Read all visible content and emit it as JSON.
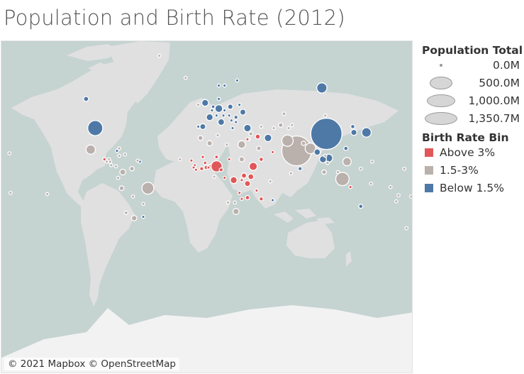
{
  "title": "Population and Birth Rate (2012)",
  "attribution": "© 2021 Mapbox © OpenStreetMap",
  "legend": {
    "size_title": "Population Total",
    "size_items": [
      {
        "label": "0.0M",
        "value": 0
      },
      {
        "label": "500.0M",
        "value": 500
      },
      {
        "label": "1,000.0M",
        "value": 1000
      },
      {
        "label": "1,350.7M",
        "value": 1350.7
      }
    ],
    "color_title": "Birth Rate Bin",
    "color_items": [
      {
        "label": "Above 3%",
        "color": "#e05759"
      },
      {
        "label": "1.5-3%",
        "color": "#bab0ac"
      },
      {
        "label": "Below 1.5%",
        "color": "#4e79a7"
      }
    ]
  },
  "chart_data": {
    "type": "scatter",
    "encoding": "circle size = population total, color = birth rate bin",
    "colors": {
      "Above 3%": "#e05759",
      "1.5-3%": "#bab0ac",
      "Below 1.5%": "#4e79a7"
    },
    "points": [
      {
        "lon": 104,
        "lat": 35,
        "pop": 1350.7,
        "bin": "Below 1.5%"
      },
      {
        "lon": 78,
        "lat": 22,
        "pop": 1236,
        "bin": "1.5-3%"
      },
      {
        "lon": -98,
        "lat": 39,
        "pop": 314,
        "bin": "Below 1.5%"
      },
      {
        "lon": 118,
        "lat": -2,
        "pop": 247,
        "bin": "1.5-3%"
      },
      {
        "lon": -52,
        "lat": -10,
        "pop": 199,
        "bin": "1.5-3%"
      },
      {
        "lon": 70,
        "lat": 30,
        "pop": 180,
        "bin": "1.5-3%"
      },
      {
        "lon": 8,
        "lat": 9,
        "pop": 169,
        "bin": "Above 3%"
      },
      {
        "lon": 90,
        "lat": 24,
        "pop": 155,
        "bin": "1.5-3%"
      },
      {
        "lon": 100,
        "lat": 61,
        "pop": 143,
        "bin": "Below 1.5%"
      },
      {
        "lon": 139,
        "lat": 36,
        "pop": 127,
        "bin": "Below 1.5%"
      },
      {
        "lon": -102,
        "lat": 23,
        "pop": 120,
        "bin": "1.5-3%"
      },
      {
        "lon": 122,
        "lat": 13,
        "pop": 97,
        "bin": "1.5-3%"
      },
      {
        "lon": 40,
        "lat": 9,
        "pop": 91,
        "bin": "Above 3%"
      },
      {
        "lon": 106,
        "lat": 16,
        "pop": 89,
        "bin": "Below 1.5%"
      },
      {
        "lon": 30,
        "lat": 27,
        "pop": 81,
        "bin": "1.5-3%"
      },
      {
        "lon": 10,
        "lat": 51,
        "pop": 80,
        "bin": "Below 1.5%"
      },
      {
        "lon": 35,
        "lat": 39,
        "pop": 75,
        "bin": "Below 1.5%"
      },
      {
        "lon": 53,
        "lat": 32,
        "pop": 76,
        "bin": "Below 1.5%"
      },
      {
        "lon": 23,
        "lat": -3,
        "pop": 65,
        "bin": "Above 3%"
      },
      {
        "lon": 101,
        "lat": 15,
        "pop": 67,
        "bin": "Below 1.5%"
      },
      {
        "lon": 2,
        "lat": 46,
        "pop": 65,
        "bin": "Below 1.5%"
      },
      {
        "lon": -2,
        "lat": 54,
        "pop": 63,
        "bin": "Below 1.5%"
      },
      {
        "lon": 12,
        "lat": 43,
        "pop": 60,
        "bin": "Below 1.5%"
      },
      {
        "lon": 25,
        "lat": -29,
        "pop": 52,
        "bin": "1.5-3%"
      },
      {
        "lon": 35,
        "lat": -6,
        "pop": 48,
        "bin": "Above 3%"
      },
      {
        "lon": 96,
        "lat": 21,
        "pop": 53,
        "bin": "Below 1.5%"
      },
      {
        "lon": 128,
        "lat": 36,
        "pop": 50,
        "bin": "Below 1.5%"
      },
      {
        "lon": -74,
        "lat": 4,
        "pop": 47,
        "bin": "1.5-3%"
      },
      {
        "lon": -4,
        "lat": 40,
        "pop": 47,
        "bin": "Below 1.5%"
      },
      {
        "lon": 31,
        "lat": 49,
        "pop": 46,
        "bin": "Below 1.5%"
      },
      {
        "lon": 38,
        "lat": 0,
        "pop": 44,
        "bin": "Above 3%"
      },
      {
        "lon": -64,
        "lat": -34,
        "pop": 41,
        "bin": "1.5-3%"
      },
      {
        "lon": 2,
        "lat": 28,
        "pop": 38,
        "bin": "1.5-3%"
      },
      {
        "lon": 30,
        "lat": 15,
        "pop": 37,
        "bin": "1.5-3%"
      },
      {
        "lon": 32,
        "lat": 1,
        "pop": 36,
        "bin": "Above 3%"
      },
      {
        "lon": 20,
        "lat": 52,
        "pop": 38,
        "bin": "Below 1.5%"
      },
      {
        "lon": -106,
        "lat": 56,
        "pop": 35,
        "bin": "Below 1.5%"
      },
      {
        "lon": 44,
        "lat": 33,
        "pop": 33,
        "bin": "Above 3%"
      },
      {
        "lon": -6,
        "lat": 32,
        "pop": 32,
        "bin": "1.5-3%"
      },
      {
        "lon": 45,
        "lat": 24,
        "pop": 29,
        "bin": "1.5-3%"
      },
      {
        "lon": 64,
        "lat": 41,
        "pop": 29,
        "bin": "1.5-3%"
      },
      {
        "lon": -75,
        "lat": -10,
        "pop": 30,
        "bin": "1.5-3%"
      },
      {
        "lon": 102,
        "lat": 4,
        "pop": 29,
        "bin": "1.5-3%"
      },
      {
        "lon": -66,
        "lat": 7,
        "pop": 29,
        "bin": "1.5-3%"
      },
      {
        "lon": 84,
        "lat": 28,
        "pop": 27,
        "bin": "1.5-3%"
      },
      {
        "lon": -1,
        "lat": 8,
        "pop": 25,
        "bin": "Above 3%"
      },
      {
        "lon": 47,
        "lat": 15,
        "pop": 24,
        "bin": "Above 3%"
      },
      {
        "lon": 35,
        "lat": -18,
        "pop": 25,
        "bin": "Above 3%"
      },
      {
        "lon": 127,
        "lat": 40,
        "pop": 24,
        "bin": "Below 1.5%"
      },
      {
        "lon": 134,
        "lat": -25,
        "pop": 23,
        "bin": "Below 1.5%"
      },
      {
        "lon": 121,
        "lat": 24,
        "pop": 23,
        "bin": "Below 1.5%"
      },
      {
        "lon": 47,
        "lat": -19,
        "pop": 22,
        "bin": "Above 3%"
      },
      {
        "lon": 12,
        "lat": 6,
        "pop": 21,
        "bin": "Above 3%"
      },
      {
        "lon": -5,
        "lat": 7,
        "pop": 20,
        "bin": "Above 3%"
      },
      {
        "lon": 81,
        "lat": 7,
        "pop": 20,
        "bin": "Below 1.5%"
      },
      {
        "lon": 25,
        "lat": 46,
        "pop": 20,
        "bin": "Below 1.5%"
      },
      {
        "lon": 38,
        "lat": 35,
        "pop": 21,
        "bin": "1.5-3%"
      },
      {
        "lon": 8,
        "lat": 17,
        "pop": 17,
        "bin": "Above 3%"
      },
      {
        "lon": -4,
        "lat": 17,
        "pop": 15,
        "bin": "Above 3%"
      },
      {
        "lon": -71,
        "lat": -30,
        "pop": 17,
        "bin": "1.5-3%"
      },
      {
        "lon": -2,
        "lat": 12,
        "pop": 16,
        "bin": "Above 3%"
      },
      {
        "lon": 28,
        "lat": -14,
        "pop": 14,
        "bin": "Above 3%"
      },
      {
        "lon": 5,
        "lat": 52,
        "pop": 17,
        "bin": "Below 1.5%"
      },
      {
        "lon": 67,
        "lat": 48,
        "pop": 17,
        "bin": "1.5-3%"
      },
      {
        "lon": -90,
        "lat": 15,
        "pop": 15,
        "bin": "Above 3%"
      },
      {
        "lon": -78,
        "lat": -1,
        "pop": 15,
        "bin": "1.5-3%"
      },
      {
        "lon": 30,
        "lat": -19,
        "pop": 13,
        "bin": "Above 3%"
      },
      {
        "lon": 105,
        "lat": 12,
        "pop": 15,
        "bin": "1.5-3%"
      },
      {
        "lon": -14,
        "lat": 14,
        "pop": 14,
        "bin": "Above 3%"
      },
      {
        "lon": 19,
        "lat": 15,
        "pop": 12,
        "bin": "Above 3%"
      },
      {
        "lon": -11,
        "lat": 10,
        "pop": 11,
        "bin": "Above 3%"
      },
      {
        "lon": 30,
        "lat": -2,
        "pop": 11,
        "bin": "Above 3%"
      },
      {
        "lon": 9,
        "lat": 34,
        "pop": 11,
        "bin": "1.5-3%"
      },
      {
        "lon": 4,
        "lat": 50,
        "pop": 11,
        "bin": "Below 1.5%"
      },
      {
        "lon": -65,
        "lat": -17,
        "pop": 10,
        "bin": "1.5-3%"
      },
      {
        "lon": 30,
        "lat": -3,
        "pop": 10,
        "bin": "Above 3%"
      },
      {
        "lon": 2,
        "lat": 9,
        "pop": 10,
        "bin": "Above 3%"
      },
      {
        "lon": -72,
        "lat": 19,
        "pop": 10,
        "bin": "1.5-3%"
      },
      {
        "lon": -79,
        "lat": 22,
        "pop": 11,
        "bin": "Below 1.5%"
      },
      {
        "lon": 22,
        "lat": 39,
        "pop": 11,
        "bin": "Below 1.5%"
      },
      {
        "lon": 15,
        "lat": 50,
        "pop": 10,
        "bin": "Below 1.5%"
      },
      {
        "lon": -8,
        "lat": 40,
        "pop": 10,
        "bin": "Below 1.5%"
      },
      {
        "lon": 15,
        "lat": 62,
        "pop": 9,
        "bin": "Below 1.5%"
      },
      {
        "lon": 19,
        "lat": 47,
        "pop": 10,
        "bin": "Below 1.5%"
      },
      {
        "lon": 28,
        "lat": 53,
        "pop": 9,
        "bin": "Below 1.5%"
      },
      {
        "lon": 47,
        "lat": 40,
        "pop": 9,
        "bin": "1.5-3%"
      },
      {
        "lon": 14,
        "lat": 47,
        "pop": 8,
        "bin": "Below 1.5%"
      },
      {
        "lon": 8,
        "lat": 47,
        "pop": 8,
        "bin": "Below 1.5%"
      },
      {
        "lon": 36,
        "lat": 31,
        "pop": 8,
        "bin": "1.5-3%"
      },
      {
        "lon": 35,
        "lat": 31,
        "pop": 6,
        "bin": "Above 3%"
      },
      {
        "lon": 25,
        "lat": 43,
        "pop": 7,
        "bin": "Below 1.5%"
      },
      {
        "lon": 21,
        "lat": 44,
        "pop": 7,
        "bin": "Below 1.5%"
      },
      {
        "lon": 143,
        "lat": -6,
        "pop": 7,
        "bin": "1.5-3%"
      },
      {
        "lon": 1,
        "lat": 8,
        "pop": 7,
        "bin": "Above 3%"
      },
      {
        "lon": -86,
        "lat": 15,
        "pop": 8,
        "bin": "1.5-3%"
      },
      {
        "lon": 71,
        "lat": 39,
        "pop": 8,
        "bin": "1.5-3%"
      },
      {
        "lon": -12,
        "lat": 8,
        "pop": 6,
        "bin": "Above 3%"
      },
      {
        "lon": 17,
        "lat": 27,
        "pop": 6,
        "bin": "1.5-3%"
      },
      {
        "lon": 103,
        "lat": 18,
        "pop": 7,
        "bin": "1.5-3%"
      },
      {
        "lon": 74,
        "lat": 41,
        "pop": 6,
        "bin": "1.5-3%"
      },
      {
        "lon": -85,
        "lat": 13,
        "pop": 6,
        "bin": "1.5-3%"
      },
      {
        "lon": 15,
        "lat": -1,
        "pop": 4,
        "bin": "Above 3%"
      },
      {
        "lon": -88,
        "lat": 13,
        "pop": 6,
        "bin": "1.5-3%"
      },
      {
        "lon": 10,
        "lat": 56,
        "pop": 6,
        "bin": "Below 1.5%"
      },
      {
        "lon": 26,
        "lat": 64,
        "pop": 5,
        "bin": "Below 1.5%"
      },
      {
        "lon": 10,
        "lat": 62,
        "pop": 5,
        "bin": "Below 1.5%"
      },
      {
        "lon": 58,
        "lat": 39,
        "pop": 5,
        "bin": "1.5-3%"
      },
      {
        "lon": -8,
        "lat": 53,
        "pop": 5,
        "bin": "1.5-3%"
      },
      {
        "lon": 174,
        "lat": -41,
        "pop": 4,
        "bin": "1.5-3%"
      },
      {
        "lon": -84,
        "lat": 10,
        "pop": 5,
        "bin": "1.5-3%"
      },
      {
        "lon": -56,
        "lat": -23,
        "pop": 7,
        "bin": "1.5-3%"
      },
      {
        "lon": -80,
        "lat": 9,
        "pop": 4,
        "bin": "1.5-3%"
      },
      {
        "lon": 57,
        "lat": 21,
        "pop": 3,
        "bin": "Above 3%"
      },
      {
        "lon": -10,
        "lat": 6,
        "pop": 4,
        "bin": "Above 3%"
      },
      {
        "lon": 18,
        "lat": -22,
        "pop": 2,
        "bin": "1.5-3%"
      },
      {
        "lon": 24,
        "lat": -22,
        "pop": 2,
        "bin": "1.5-3%"
      },
      {
        "lon": 103,
        "lat": 47,
        "pop": 3,
        "bin": "1.5-3%"
      },
      {
        "lon": -56,
        "lat": -33,
        "pop": 3,
        "bin": "Below 1.5%"
      },
      {
        "lon": -42,
        "lat": 72,
        "pop": 0.06,
        "bin": "1.5-3%"
      },
      {
        "lon": -19,
        "lat": 65,
        "pop": 0.3,
        "bin": "1.5-3%"
      },
      {
        "lon": -24,
        "lat": 15,
        "pop": 0.5,
        "bin": "1.5-3%"
      },
      {
        "lon": -140,
        "lat": -15,
        "pop": 0.27,
        "bin": "1.5-3%"
      },
      {
        "lon": -173,
        "lat": 20,
        "pop": 1.4,
        "bin": "1.5-3%"
      },
      {
        "lon": 178,
        "lat": -17,
        "pop": 0.9,
        "bin": "1.5-3%"
      },
      {
        "lon": 160,
        "lat": -9,
        "pop": 0.5,
        "bin": "1.5-3%"
      },
      {
        "lon": 167,
        "lat": -16,
        "pop": 0.25,
        "bin": "1.5-3%"
      },
      {
        "lon": 172,
        "lat": 7,
        "pop": 0.05,
        "bin": "1.5-3%"
      },
      {
        "lon": 165,
        "lat": -21,
        "pop": 0.27,
        "bin": "1.5-3%"
      },
      {
        "lon": 144,
        "lat": 13,
        "pop": 0.16,
        "bin": "1.5-3%"
      },
      {
        "lon": 134,
        "lat": 7,
        "pop": 0.02,
        "bin": "1.5-3%"
      },
      {
        "lon": -172,
        "lat": -14,
        "pop": 0.19,
        "bin": "1.5-3%"
      },
      {
        "lon": 125,
        "lat": -9,
        "pop": 1.1,
        "bin": "Above 3%"
      },
      {
        "lon": 55,
        "lat": -4,
        "pop": 0.09,
        "bin": "1.5-3%"
      },
      {
        "lon": 57,
        "lat": -20,
        "pop": 1.3,
        "bin": "Below 1.5%"
      },
      {
        "lon": 73,
        "lat": 3,
        "pop": 0.34,
        "bin": "1.5-3%"
      },
      {
        "lon": 43,
        "lat": -12,
        "pop": 0.7,
        "bin": "Above 3%"
      },
      {
        "lon": 6,
        "lat": 0,
        "pop": 0.19,
        "bin": "1.5-3%"
      },
      {
        "lon": -61,
        "lat": 14,
        "pop": 0.18,
        "bin": "1.5-3%"
      },
      {
        "lon": -59,
        "lat": 13,
        "pop": 0.28,
        "bin": "Below 1.5%"
      },
      {
        "lon": -77,
        "lat": 18,
        "pop": 2.7,
        "bin": "1.5-3%"
      },
      {
        "lon": -77,
        "lat": 24,
        "pop": 0.37,
        "bin": "1.5-3%"
      },
      {
        "lon": 114,
        "lat": 4,
        "pop": 0.41,
        "bin": "1.5-3%"
      }
    ]
  }
}
